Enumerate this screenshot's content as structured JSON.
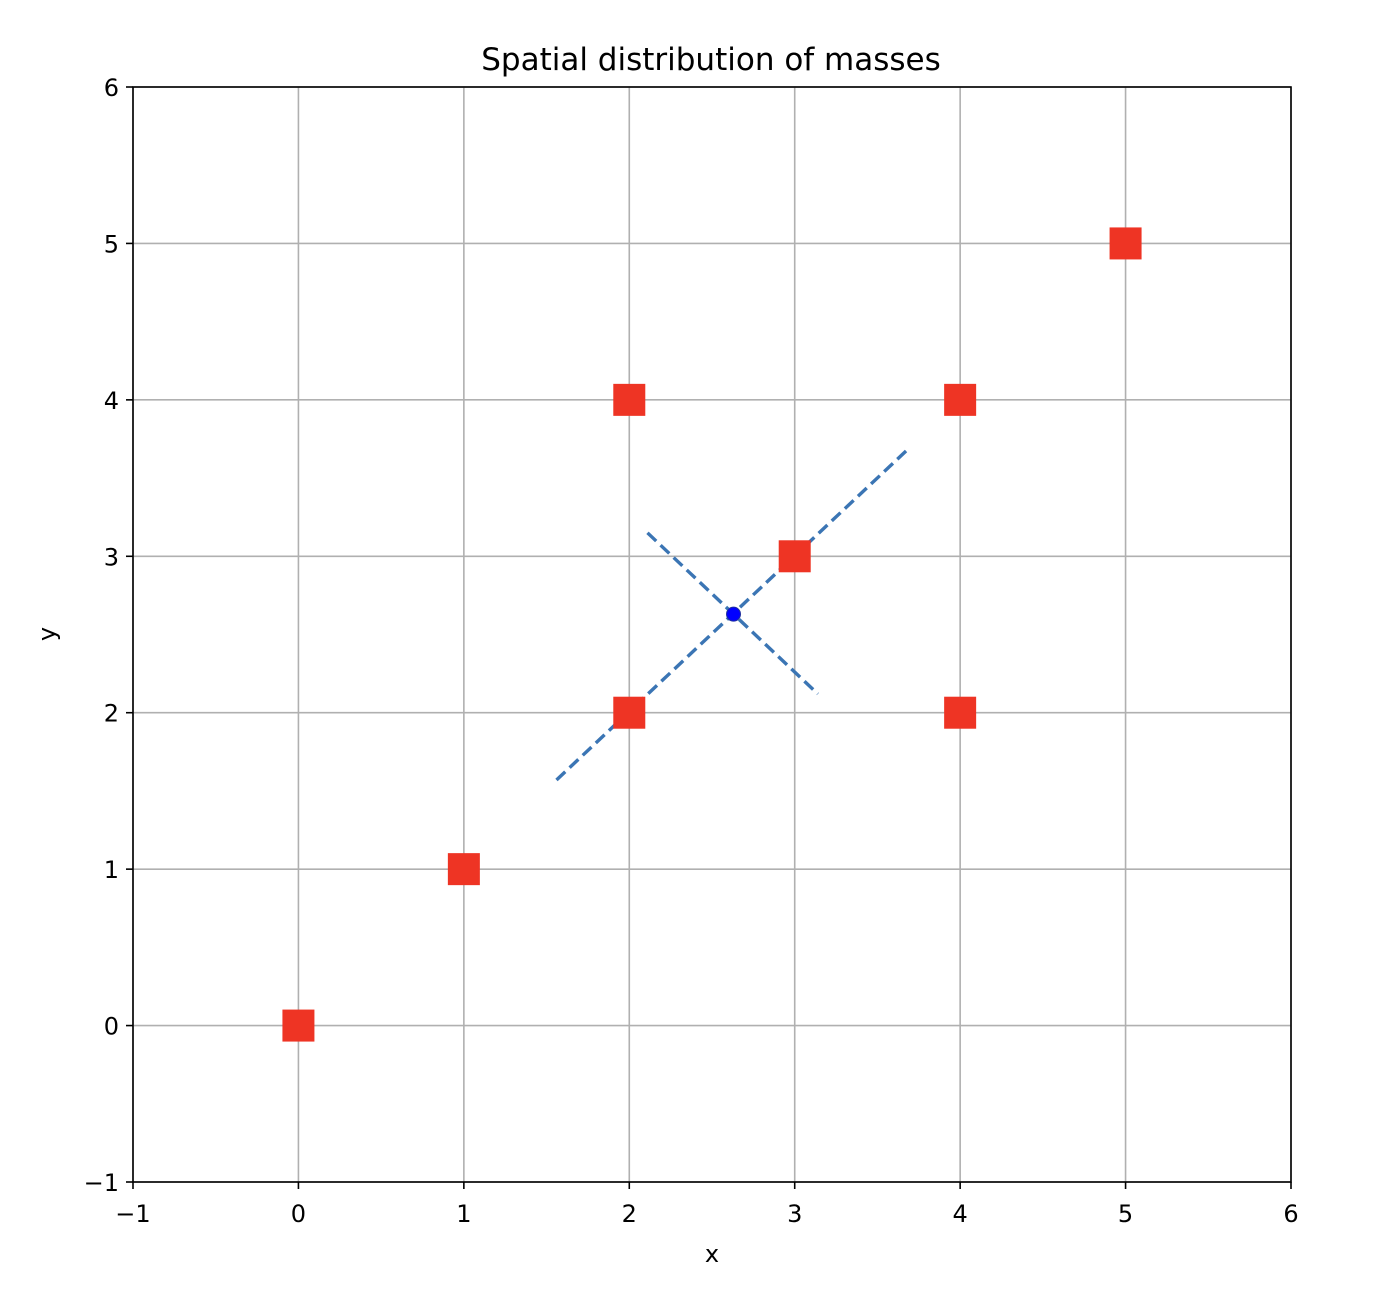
{
  "chart_data": {
    "type": "scatter",
    "title": "Spatial distribution of masses",
    "xlabel": "x",
    "ylabel": "y",
    "xlim": [
      -1,
      6
    ],
    "ylim": [
      -1,
      6
    ],
    "xticks": [
      -1,
      0,
      1,
      2,
      3,
      4,
      5,
      6
    ],
    "yticks": [
      -1,
      0,
      1,
      2,
      3,
      4,
      5,
      6
    ],
    "xtick_labels": [
      "−1",
      "0",
      "1",
      "2",
      "3",
      "4",
      "5",
      "6"
    ],
    "ytick_labels": [
      "−1",
      "0",
      "1",
      "2",
      "3",
      "4",
      "5",
      "6"
    ],
    "grid": true,
    "legend": "none",
    "masses": {
      "marker": "square",
      "color": "#ee3424",
      "points": [
        {
          "x": 0,
          "y": 0
        },
        {
          "x": 1,
          "y": 1
        },
        {
          "x": 2,
          "y": 2
        },
        {
          "x": 2,
          "y": 4
        },
        {
          "x": 3,
          "y": 3
        },
        {
          "x": 4,
          "y": 2
        },
        {
          "x": 4,
          "y": 4
        },
        {
          "x": 5,
          "y": 5
        }
      ]
    },
    "center_of_mass": {
      "x": 2.63,
      "y": 2.63,
      "color": "#0000ff"
    },
    "principal_axes": {
      "color": "#3b75b4",
      "style": "dashed",
      "lines": [
        {
          "x": [
            1.56,
            3.68
          ],
          "y": [
            1.57,
            3.68
          ]
        },
        {
          "x": [
            2.11,
            3.14
          ],
          "y": [
            3.15,
            2.12
          ]
        }
      ]
    }
  }
}
